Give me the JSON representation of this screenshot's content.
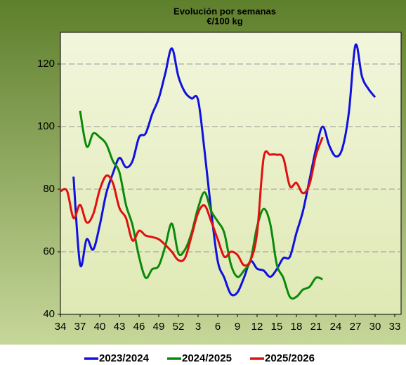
{
  "chart_data": {
    "type": "line",
    "title": "Evolución por semanas",
    "subtitle": "€/100 kg",
    "categories": [
      "34",
      null,
      null,
      "37",
      null,
      null,
      "40",
      null,
      null,
      "43",
      null,
      null,
      "46",
      null,
      null,
      "49",
      null,
      null,
      "52",
      null,
      null,
      "3",
      null,
      null,
      "6",
      null,
      null,
      "9",
      null,
      null,
      "12",
      null,
      null,
      "15",
      null,
      null,
      "18",
      null,
      null,
      "21",
      null,
      null,
      "24",
      null,
      null,
      "27",
      null,
      null,
      "30",
      null,
      null,
      "33"
    ],
    "ylim": [
      40,
      130
    ],
    "yticks": [
      40,
      60,
      80,
      100,
      120
    ],
    "grid": true,
    "legend": "bottom",
    "series": [
      {
        "name": "2023/2024",
        "color": "#1010e0",
        "values": [
          null,
          null,
          84,
          56,
          64,
          60.7,
          68.5,
          78.7,
          85,
          90,
          87,
          89,
          96.6,
          97.8,
          104,
          109,
          117,
          125,
          116,
          111,
          109,
          108.5,
          92,
          73,
          57,
          51.7,
          46.5,
          47,
          51.7,
          57,
          54.6,
          54,
          52,
          54.4,
          58,
          58.4,
          66,
          73,
          83,
          93,
          100,
          94,
          90.5,
          93,
          104.5,
          126,
          116,
          112,
          109.4,
          null,
          null,
          null
        ]
      },
      {
        "name": "2024/2025",
        "color": "#0a8a0a",
        "values": [
          null,
          null,
          null,
          105,
          93.7,
          97.8,
          96.6,
          94.4,
          89,
          85.4,
          75,
          68.5,
          58.4,
          51.7,
          54.4,
          55.5,
          61.8,
          69,
          59.5,
          60.7,
          66,
          74,
          79,
          73,
          69.7,
          66,
          56,
          52,
          54,
          57.3,
          68,
          73.7,
          69,
          56,
          51.7,
          45.6,
          45.6,
          47.9,
          48.8,
          51.7,
          51.2,
          null,
          null,
          null,
          null,
          null,
          null,
          null,
          null,
          null,
          null,
          null
        ]
      },
      {
        "name": "2025/2026",
        "color": "#e01010",
        "values": [
          79.3,
          79.5,
          70.8,
          75,
          69.4,
          72,
          79.8,
          84.3,
          82,
          74,
          70.8,
          63.6,
          66.7,
          65.2,
          64.7,
          64,
          62.2,
          60,
          57.3,
          58,
          65,
          72.4,
          74.8,
          69.7,
          64,
          58.4,
          60,
          59,
          55.7,
          57.3,
          66,
          90,
          91,
          91,
          90,
          81,
          82,
          78.7,
          81.6,
          91,
          96.6,
          null,
          null,
          null,
          null,
          null,
          null,
          null,
          null,
          null,
          null,
          null
        ]
      }
    ]
  }
}
